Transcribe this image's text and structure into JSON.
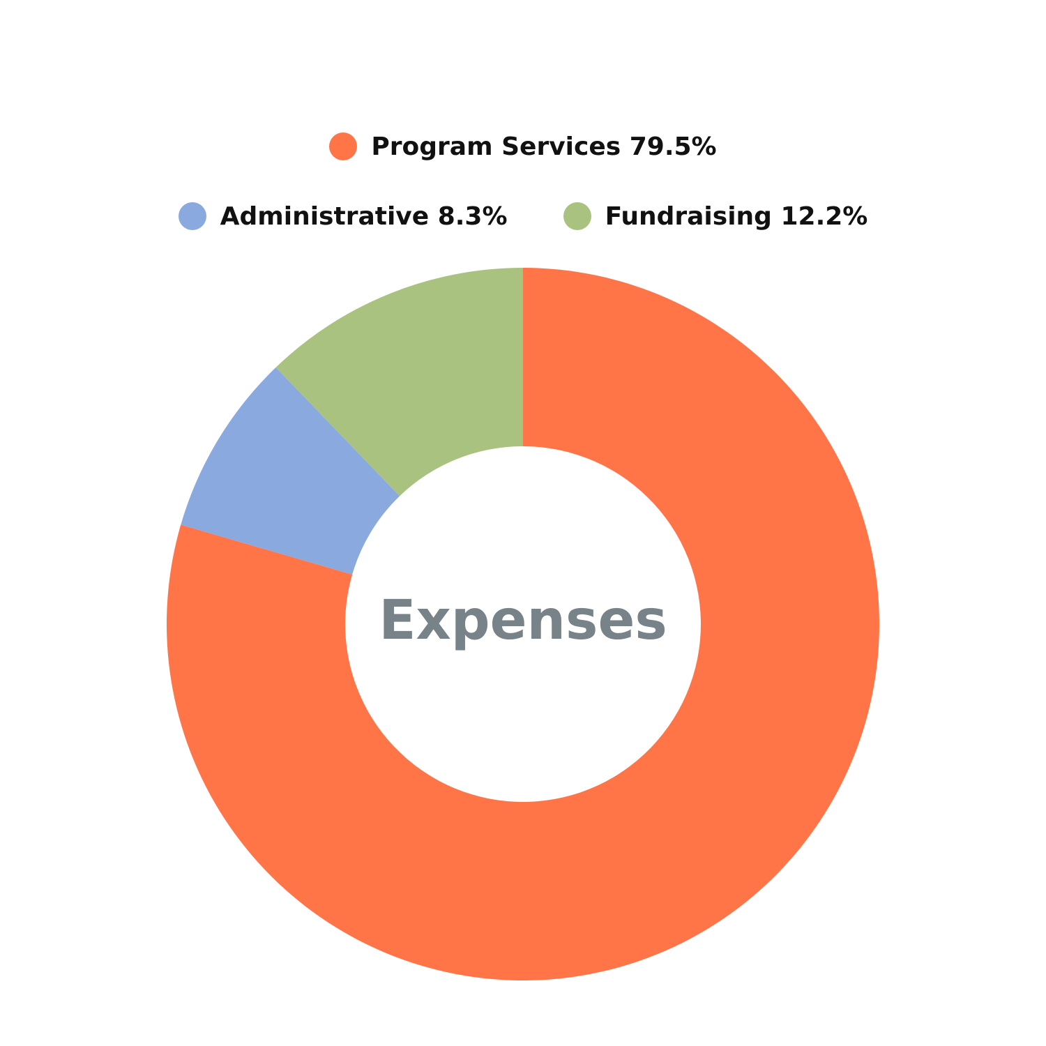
{
  "chart_data": {
    "type": "pie",
    "variant": "donut",
    "center_label": "Expenses",
    "legend_placement": "top",
    "slices": [
      {
        "name": "Program Services",
        "value": 79.5,
        "label": "Program Services 79.5%",
        "color": "#FF7548"
      },
      {
        "name": "Administrative",
        "value": 8.3,
        "label": "Administrative 8.3%",
        "color": "#89A9DF"
      },
      {
        "name": "Fundraising",
        "value": 12.2,
        "label": "Fundraising 12.2%",
        "color": "#AAC280"
      }
    ]
  }
}
